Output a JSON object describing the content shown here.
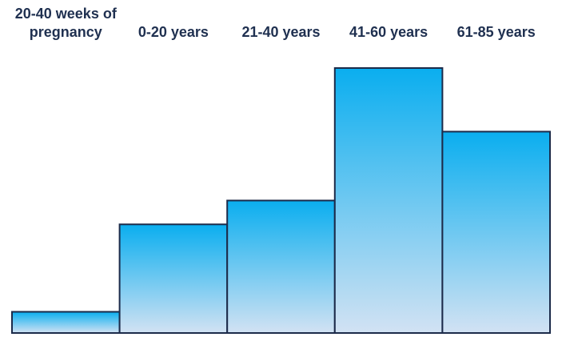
{
  "chart_data": {
    "type": "bar",
    "categories": [
      "20-40 weeks of pregnancy",
      "0-20 years",
      "21-40 years",
      "41-60 years",
      "61-85 years"
    ],
    "values": [
      8,
      41,
      50,
      100,
      76
    ],
    "color": "#0aaeef",
    "gradient_end_color": "#d2e2f3",
    "edge_color": "#1c2b4a",
    "ylim": [
      0,
      100
    ]
  }
}
